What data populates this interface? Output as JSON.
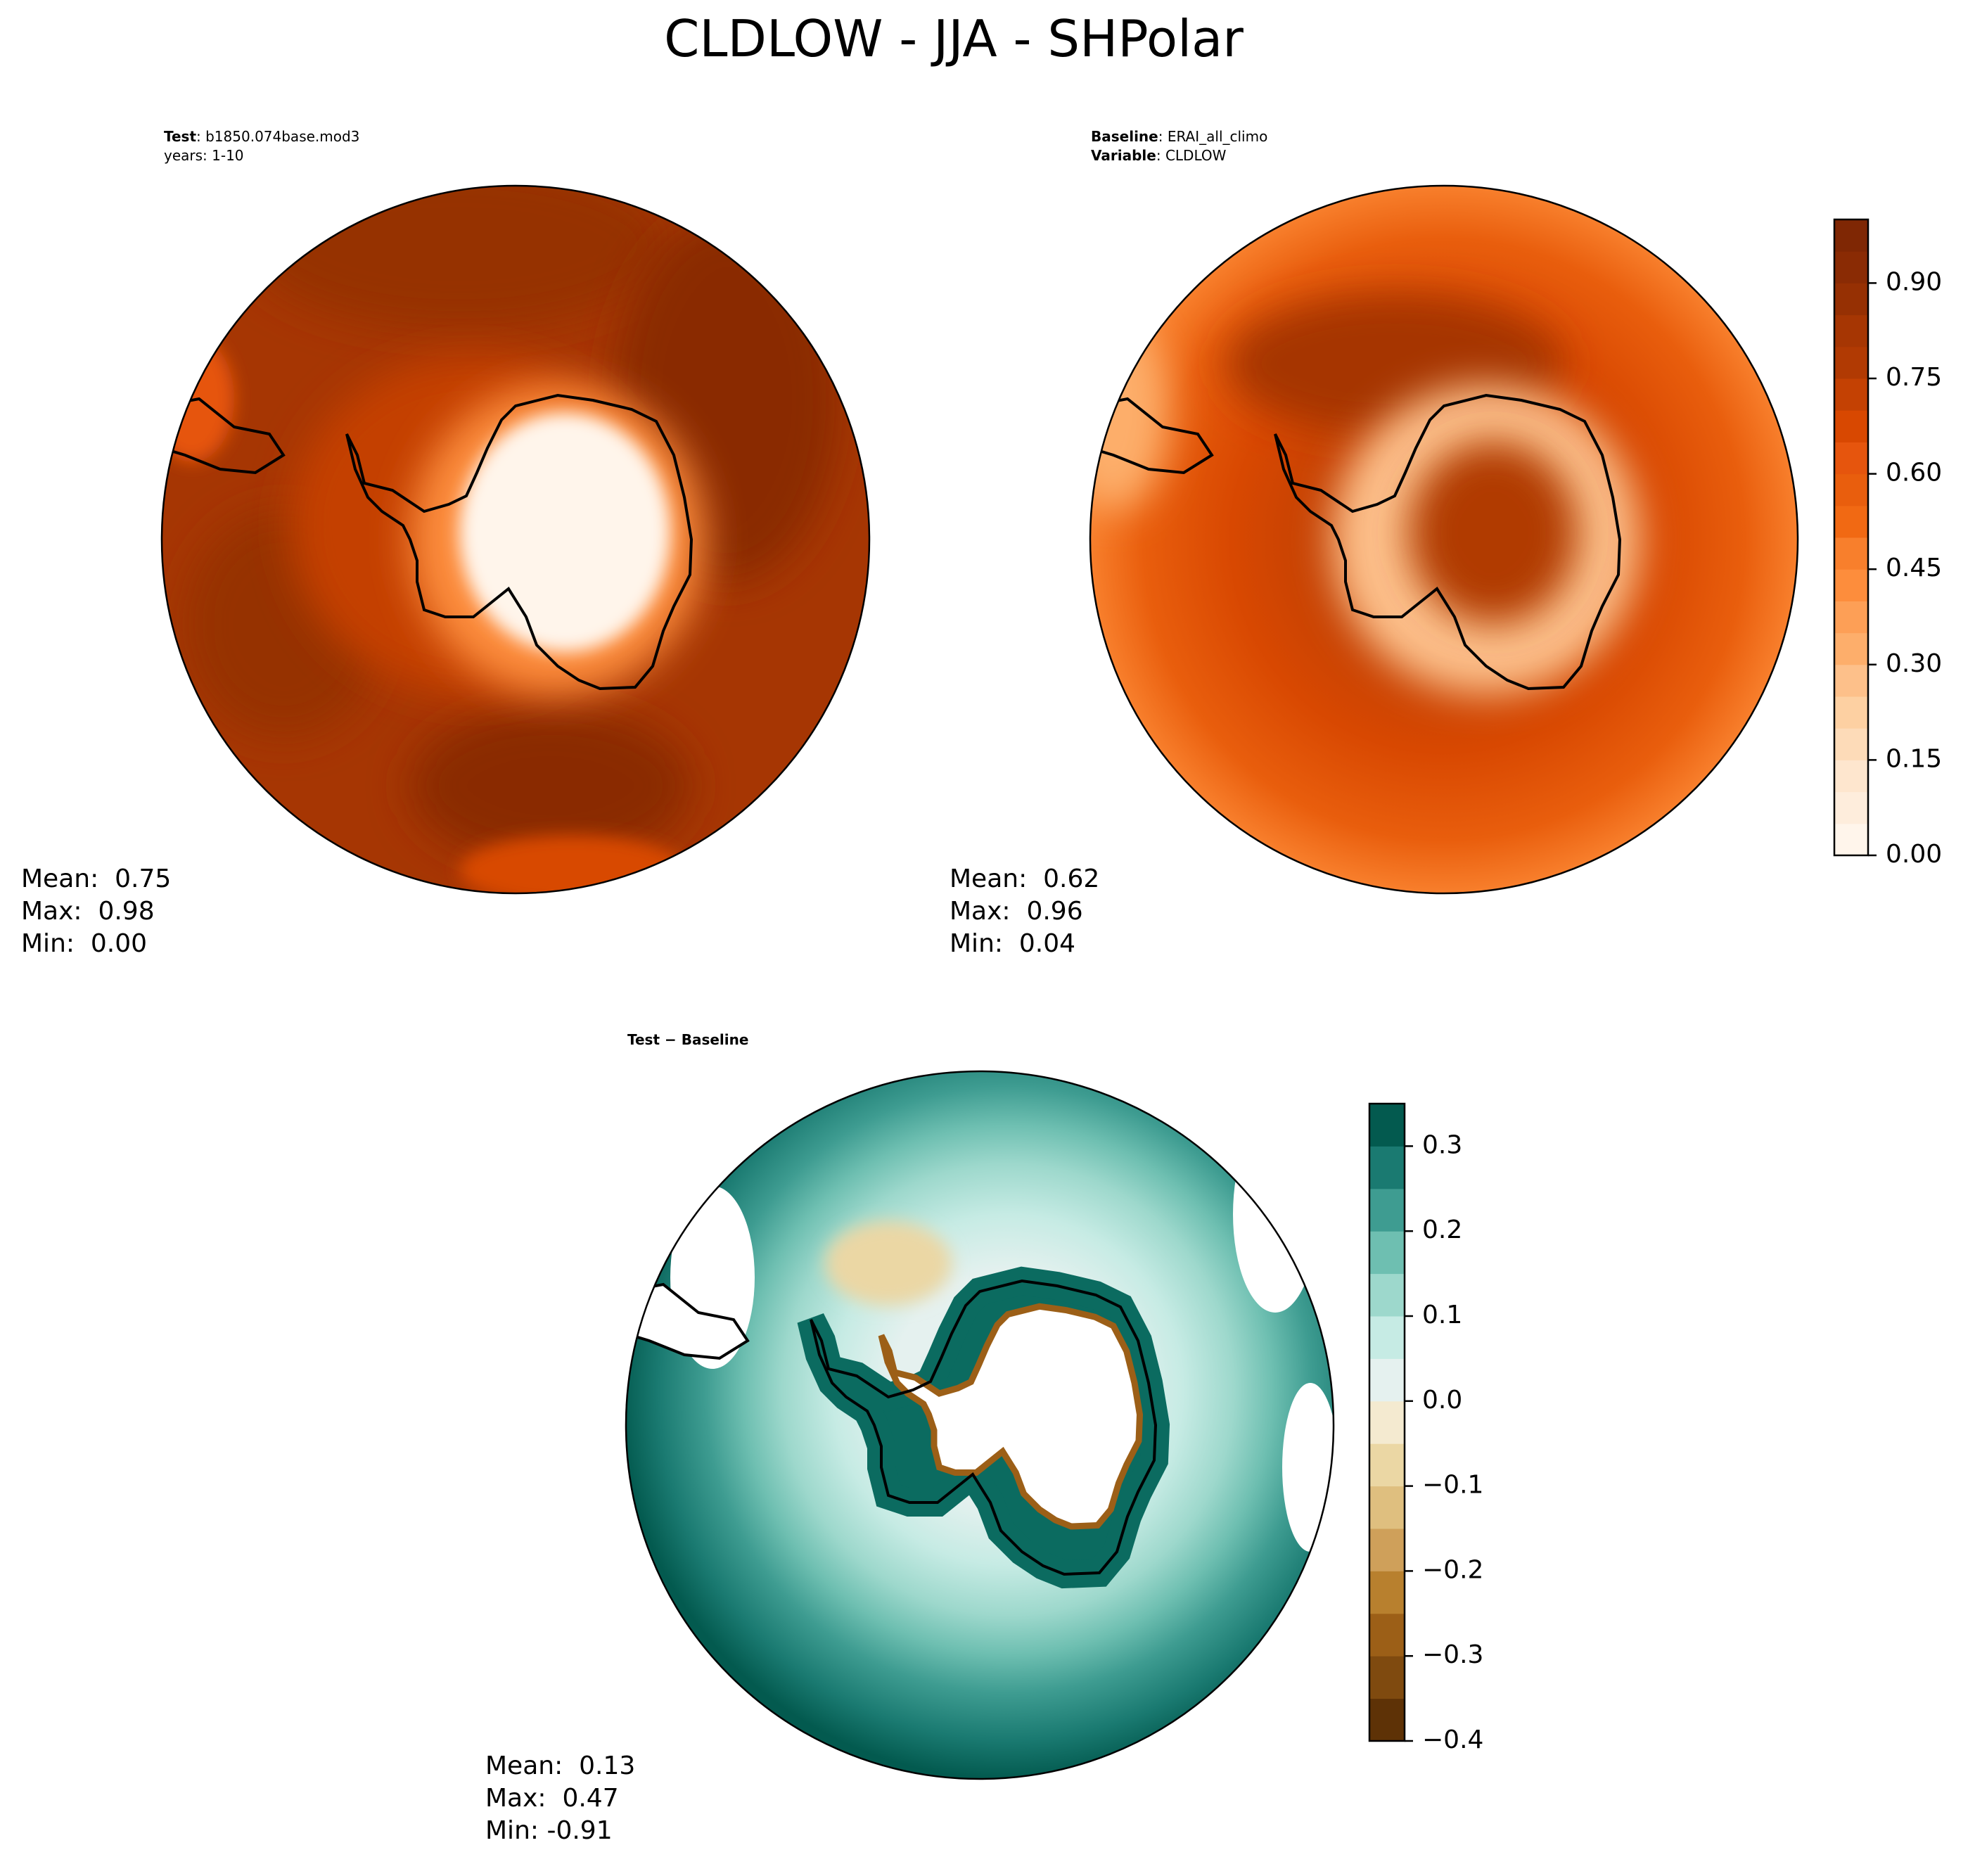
{
  "title": "CLDLOW - JJA - SHPolar",
  "panels": [
    {
      "header": [
        {
          "bold": "Test",
          "text": ": b1850.074base.mod3"
        },
        {
          "text": "years: 1-10"
        }
      ],
      "stats": [
        "Mean:  0.75",
        "Max:  0.98",
        "Min:  0.00"
      ]
    },
    {
      "header": [
        {
          "bold": "Baseline",
          "text": ": ERAI_all_climo"
        },
        {
          "bold": "Variable",
          "text": ": CLDLOW"
        }
      ],
      "stats": [
        "Mean:  0.62",
        "Max:  0.96",
        "Min:  0.04"
      ]
    },
    {
      "header": [
        {
          "bold": "Test − Baseline"
        }
      ],
      "stats": [
        "Mean:  0.13",
        "Max:  0.47",
        "Min: -0.91"
      ]
    }
  ],
  "colorbars": [
    {
      "lim": [
        0,
        1.0
      ],
      "ticks": [
        {
          "value": 0,
          "label": "0.00"
        },
        {
          "value": 0.15,
          "label": "0.15"
        },
        {
          "value": 0.3,
          "label": "0.30"
        },
        {
          "value": 0.45,
          "label": "0.45"
        },
        {
          "value": 0.6,
          "label": "0.60"
        },
        {
          "value": 0.75,
          "label": "0.75"
        },
        {
          "value": 0.9,
          "label": "0.90"
        }
      ],
      "colors": [
        "#fff5eb",
        "#feeddc",
        "#fee6ce",
        "#fddbb8",
        "#fdd0a2",
        "#fdc08a",
        "#fdae6b",
        "#fd9f56",
        "#fd8d3c",
        "#f87f2c",
        "#f16913",
        "#e95e0d",
        "#e6550d",
        "#d84801",
        "#c44103",
        "#b13a03",
        "#a63603",
        "#963003",
        "#8a2b04",
        "#7f2704"
      ]
    },
    {
      "lim": [
        -0.4,
        0.35
      ],
      "ticks": [
        {
          "value": -0.4,
          "label": "−0.4"
        },
        {
          "value": -0.3,
          "label": "−0.3"
        },
        {
          "value": -0.2,
          "label": "−0.2"
        },
        {
          "value": -0.1,
          "label": "−0.1"
        },
        {
          "value": 0,
          "label": "0.0"
        },
        0.1,
        0.2,
        0.3
      ],
      "colors": [
        "#5e3206",
        "#7f4a0f",
        "#9c5f17",
        "#b8802e",
        "#cfa05a",
        "#dfbf7f",
        "#ebd7a4",
        "#f4ead0",
        "#e5f1ef",
        "#c6ebe4",
        "#9dd8cc",
        "#6ebfb1",
        "#3e9c91",
        "#1a7a71",
        "#035a4f"
      ]
    }
  ]
}
